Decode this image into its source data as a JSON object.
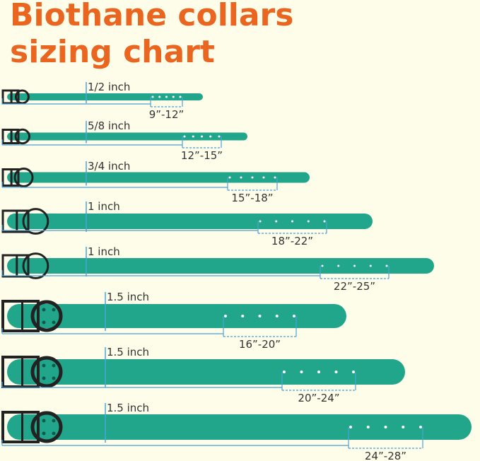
{
  "header": {
    "title_line1": "Biothane collars",
    "title_line2": "sizing chart"
  },
  "collars": [
    {
      "width": "1/2 inch",
      "size": "9”-12”"
    },
    {
      "width": "5/8 inch",
      "size": "12”-15”"
    },
    {
      "width": "3/4 inch",
      "size": "15”-18”"
    },
    {
      "width": "1 inch",
      "size": "18”-22”"
    },
    {
      "width": "1 inch",
      "size": "22”-25”"
    },
    {
      "width": "1.5 inch",
      "size": "16”-20”"
    },
    {
      "width": "1.5 inch",
      "size": "20”-24”"
    },
    {
      "width": "1.5 inch",
      "size": "24”-28”"
    }
  ]
}
